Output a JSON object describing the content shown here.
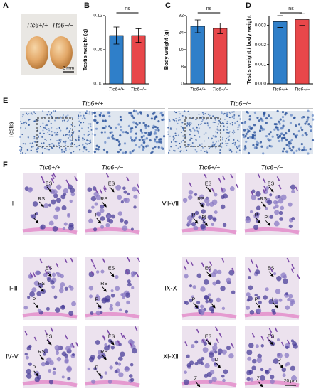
{
  "panel_labels": [
    "A",
    "B",
    "C",
    "D",
    "E",
    "F"
  ],
  "panel_a": {
    "genotypes": [
      "Ttc6+/+",
      "Ttc6−/−"
    ],
    "scale": "2 mm"
  },
  "chart_data": [
    {
      "type": "bar",
      "ylabel": "Testis weight (g)",
      "categories": [
        "Ttc6+/+",
        "Ttc6−/−"
      ],
      "values": [
        0.085,
        0.085
      ],
      "errors": [
        0.015,
        0.012
      ],
      "colors": [
        "#2f7fc9",
        "#e8474a"
      ],
      "ylim": [
        0,
        0.12
      ],
      "yticks": [
        {
          "value": 0,
          "label": "0.00"
        },
        {
          "value": 0.06,
          "label": "0.06"
        },
        {
          "value": 0.12,
          "label": "0.12"
        }
      ],
      "annotation": "ns"
    },
    {
      "type": "bar",
      "ylabel": "Body weight (g)",
      "categories": [
        "Ttc6+/+",
        "Ttc6−/−"
      ],
      "values": [
        27,
        26
      ],
      "errors": [
        3,
        2.5
      ],
      "colors": [
        "#2f7fc9",
        "#e8474a"
      ],
      "ylim": [
        0,
        32
      ],
      "yticks": [
        0,
        8,
        16,
        24,
        32
      ],
      "annotation": "ns"
    },
    {
      "type": "bar",
      "ylabel": "Testis weight / body weight",
      "categories": [
        "Ttc6+/+",
        "Ttc6−/−"
      ],
      "values": [
        0.0032,
        0.0033
      ],
      "errors": [
        0.0003,
        0.0003
      ],
      "colors": [
        "#2f7fc9",
        "#e8474a"
      ],
      "ylim": [
        0,
        0.0035
      ],
      "yticks": [
        {
          "value": 0,
          "label": "0.000"
        },
        {
          "value": 0.001,
          "label": "0.001"
        },
        {
          "value": 0.002,
          "label": "0.002"
        },
        {
          "value": 0.003,
          "label": "0.003"
        }
      ],
      "annotation": "ns"
    }
  ],
  "panel_e": {
    "genotypes": [
      "Ttc6+/+",
      "Ttc6−/−"
    ],
    "tissue": "Testis"
  },
  "panel_f": {
    "genotypes": [
      "Ttc6+/+",
      "Ttc6−/−"
    ],
    "scale": "20 μm",
    "stages": [
      {
        "stage": "Ⅰ",
        "wt": [
          "ES",
          "RS",
          "P"
        ],
        "ko": [
          "ES",
          "RS",
          "P"
        ]
      },
      {
        "stage": "Ⅱ-Ⅲ",
        "wt": [
          "ES",
          "RS",
          "P"
        ],
        "ko": [
          "ES",
          "RS",
          "P"
        ]
      },
      {
        "stage": "Ⅳ-Ⅵ",
        "wt": [
          "ES",
          "RS",
          "P"
        ],
        "ko": [
          "ES",
          "RS",
          "P"
        ]
      },
      {
        "stage": "Ⅶ-Ⅷ",
        "wt": [
          "ES",
          "RS",
          "P",
          "Pl"
        ],
        "ko": [
          "ES",
          "RS",
          "P",
          "Pl"
        ]
      },
      {
        "stage": "Ⅸ-Ⅹ",
        "wt": [
          "ES",
          "P",
          "L"
        ],
        "ko": [
          "ES",
          "P",
          "L"
        ]
      },
      {
        "stage": "Ⅺ-Ⅻ",
        "wt": [
          "ES",
          "D",
          "Z"
        ],
        "ko": [
          "ES",
          "D",
          "Z"
        ]
      }
    ]
  }
}
